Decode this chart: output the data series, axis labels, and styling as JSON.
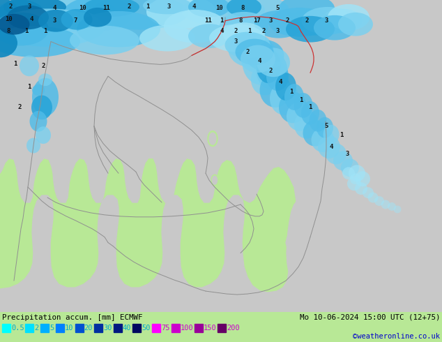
{
  "title_left": "Precipitation accum. [mm] ECMWF",
  "title_right": "Mo 10-06-2024 15:00 UTC (12+75)",
  "copyright": "©weatheronline.co.uk",
  "legend_values": [
    "0.5",
    "2",
    "5",
    "10",
    "20",
    "30",
    "40",
    "50",
    "75",
    "100",
    "150",
    "200"
  ],
  "legend_colors_hex": [
    "#00ffff",
    "#00e0ff",
    "#00b0ff",
    "#0080ff",
    "#0050d0",
    "#0030a0",
    "#001880",
    "#000860",
    "#ff00ff",
    "#cc00cc",
    "#990099",
    "#660066"
  ],
  "legend_text_colors": [
    "#00aacc",
    "#00aacc",
    "#00aacc",
    "#00aacc",
    "#00aacc",
    "#00aacc",
    "#00aacc",
    "#00aacc",
    "#cc00cc",
    "#cc00cc",
    "#cc00cc",
    "#cc00cc"
  ],
  "bg_land_color": "#b8e896",
  "bg_sea_color": "#c8d8c0",
  "gray_land_color": "#c8c8c8",
  "border_color": "#909090",
  "red_border_color": "#cc3333",
  "precip_colors": {
    "lightest": "#c8f0ff",
    "light1": "#a0e0f8",
    "light2": "#78ccf0",
    "medium1": "#50b8e8",
    "medium2": "#28a0d8",
    "medium3": "#1080c0",
    "dark1": "#0868a8",
    "dark2": "#0050908",
    "darkest": "#003870"
  },
  "figsize": [
    6.34,
    4.9
  ],
  "dpi": 100
}
